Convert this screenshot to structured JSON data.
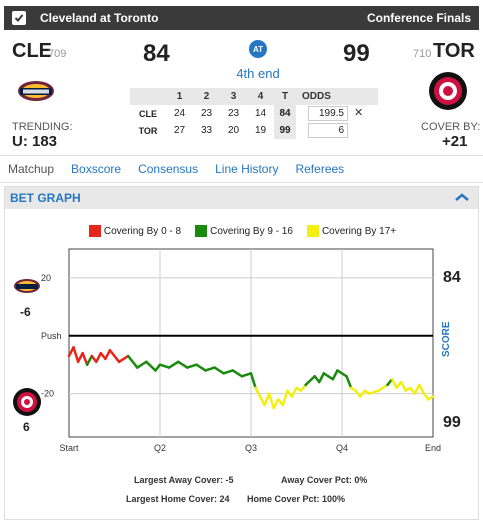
{
  "header": {
    "title": "Cleveland at Toronto",
    "series": "Conference Finals"
  },
  "game": {
    "away": {
      "abbr": "CLE",
      "rotation": "709",
      "score": "84",
      "trending_label": "TRENDING:",
      "trending_value": "U: 183"
    },
    "home": {
      "abbr": "TOR",
      "rotation": "710",
      "score": "99",
      "cover_label": "COVER BY:",
      "cover_value": "+21"
    },
    "at_label": "AT",
    "period": "4th end"
  },
  "linescore": {
    "headers": [
      "",
      "1",
      "2",
      "3",
      "4",
      "T",
      "ODDS"
    ],
    "rows": [
      {
        "team": "CLE",
        "q": [
          "24",
          "23",
          "23",
          "14"
        ],
        "total": "84",
        "odds": "199.5",
        "odds_extra": "✕"
      },
      {
        "team": "TOR",
        "q": [
          "27",
          "33",
          "20",
          "19"
        ],
        "total": "99",
        "odds": "6",
        "odds_extra": ""
      }
    ]
  },
  "tabs": [
    "Matchup",
    "Boxscore",
    "Consensus",
    "Line History",
    "Referees"
  ],
  "bet_graph": {
    "title": "BET GRAPH",
    "legend": [
      {
        "label": "Covering By 0 - 8",
        "color": "#e8251b"
      },
      {
        "label": "Covering By 9 - 16",
        "color": "#1a8a0e"
      },
      {
        "label": "Covering By 17+",
        "color": "#f2ef12"
      }
    ],
    "away_spread": "-6",
    "home_spread": "6",
    "score_axis_label": "SCORE",
    "away_final": "84",
    "home_final": "99",
    "footer": {
      "largest_away": "Largest Away Cover: -5",
      "away_pct": "Away Cover Pct: 0%",
      "largest_home": "Largest Home Cover: 24",
      "home_pct": "Home Cover Pct: 100%"
    }
  },
  "chart_data": {
    "type": "line",
    "x_ticks": [
      "Start",
      "Q2",
      "Q3",
      "Q4",
      "End"
    ],
    "y_ticks": [
      {
        "value": 20,
        "label": "20"
      },
      {
        "value": 0,
        "label": "Push"
      },
      {
        "value": -20,
        "label": "-20"
      }
    ],
    "ylim": [
      -35,
      30
    ],
    "xlim": [
      0,
      4
    ],
    "grid": true,
    "series": [
      {
        "x": 0.0,
        "y": -7
      },
      {
        "x": 0.05,
        "y": -4
      },
      {
        "x": 0.1,
        "y": -9
      },
      {
        "x": 0.15,
        "y": -6
      },
      {
        "x": 0.2,
        "y": -10
      },
      {
        "x": 0.25,
        "y": -7
      },
      {
        "x": 0.3,
        "y": -9
      },
      {
        "x": 0.35,
        "y": -6
      },
      {
        "x": 0.4,
        "y": -8
      },
      {
        "x": 0.45,
        "y": -5
      },
      {
        "x": 0.55,
        "y": -9
      },
      {
        "x": 0.65,
        "y": -7
      },
      {
        "x": 0.75,
        "y": -11
      },
      {
        "x": 0.85,
        "y": -9
      },
      {
        "x": 0.95,
        "y": -12
      },
      {
        "x": 1.0,
        "y": -10
      },
      {
        "x": 1.1,
        "y": -11
      },
      {
        "x": 1.2,
        "y": -9
      },
      {
        "x": 1.3,
        "y": -11
      },
      {
        "x": 1.4,
        "y": -10
      },
      {
        "x": 1.5,
        "y": -12
      },
      {
        "x": 1.6,
        "y": -11
      },
      {
        "x": 1.7,
        "y": -13
      },
      {
        "x": 1.8,
        "y": -12
      },
      {
        "x": 1.9,
        "y": -14
      },
      {
        "x": 2.0,
        "y": -13
      },
      {
        "x": 2.05,
        "y": -18
      },
      {
        "x": 2.1,
        "y": -21
      },
      {
        "x": 2.15,
        "y": -24
      },
      {
        "x": 2.2,
        "y": -20
      },
      {
        "x": 2.25,
        "y": -25
      },
      {
        "x": 2.3,
        "y": -22
      },
      {
        "x": 2.35,
        "y": -24
      },
      {
        "x": 2.4,
        "y": -19
      },
      {
        "x": 2.45,
        "y": -21
      },
      {
        "x": 2.5,
        "y": -18
      },
      {
        "x": 2.55,
        "y": -19
      },
      {
        "x": 2.6,
        "y": -17
      },
      {
        "x": 2.7,
        "y": -14
      },
      {
        "x": 2.75,
        "y": -16
      },
      {
        "x": 2.8,
        "y": -13
      },
      {
        "x": 2.9,
        "y": -15
      },
      {
        "x": 2.95,
        "y": -12
      },
      {
        "x": 3.0,
        "y": -13
      },
      {
        "x": 3.05,
        "y": -14
      },
      {
        "x": 3.1,
        "y": -18
      },
      {
        "x": 3.15,
        "y": -19
      },
      {
        "x": 3.2,
        "y": -21
      },
      {
        "x": 3.25,
        "y": -19
      },
      {
        "x": 3.3,
        "y": -20
      },
      {
        "x": 3.4,
        "y": -19
      },
      {
        "x": 3.5,
        "y": -17
      },
      {
        "x": 3.55,
        "y": -15
      },
      {
        "x": 3.6,
        "y": -18
      },
      {
        "x": 3.65,
        "y": -16
      },
      {
        "x": 3.7,
        "y": -19
      },
      {
        "x": 3.75,
        "y": -18
      },
      {
        "x": 3.8,
        "y": -20
      },
      {
        "x": 3.85,
        "y": -17
      },
      {
        "x": 3.9,
        "y": -20
      },
      {
        "x": 3.95,
        "y": -22
      },
      {
        "x": 4.0,
        "y": -21
      }
    ]
  }
}
